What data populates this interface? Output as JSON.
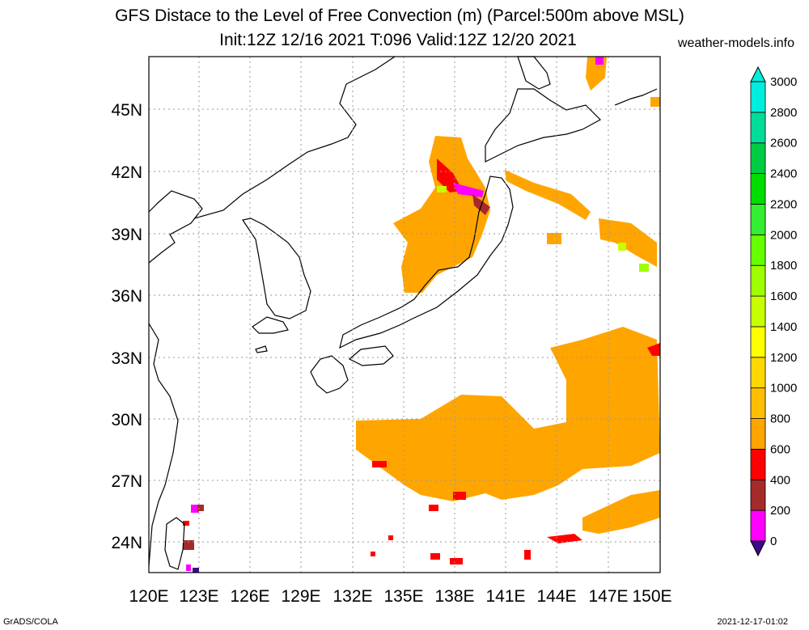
{
  "title_line1": "GFS Distace to the Level of Free Convection (m) (Parcel:500m above MSL)",
  "title_line2": "Init:12Z 12/16 2021 T:096 Valid:12Z 12/20 2021",
  "site": "weather-models.info",
  "footer_left": "GrADS/COLA",
  "footer_right": "2021-12-17-01:02",
  "lat_labels": [
    "24N",
    "27N",
    "30N",
    "33N",
    "36N",
    "39N",
    "42N",
    "45N"
  ],
  "lon_labels": [
    "120E",
    "123E",
    "126E",
    "129E",
    "132E",
    "135E",
    "138E",
    "141E",
    "144E",
    "147E",
    "150E"
  ],
  "colorbar": {
    "ticks": [
      "0",
      "200",
      "400",
      "600",
      "800",
      "1000",
      "1200",
      "1400",
      "1600",
      "1800",
      "2000",
      "2200",
      "2400",
      "2600",
      "2800",
      "3000"
    ],
    "colors": [
      "#3b0a8a",
      "#ff00ff",
      "#a52a2a",
      "#ff0000",
      "#ffa500",
      "#ffbf00",
      "#ffd700",
      "#ffff00",
      "#c8ff00",
      "#9eff00",
      "#66ff00",
      "#33ee33",
      "#00dd00",
      "#00cc44",
      "#00dd99",
      "#00eedd"
    ]
  }
}
